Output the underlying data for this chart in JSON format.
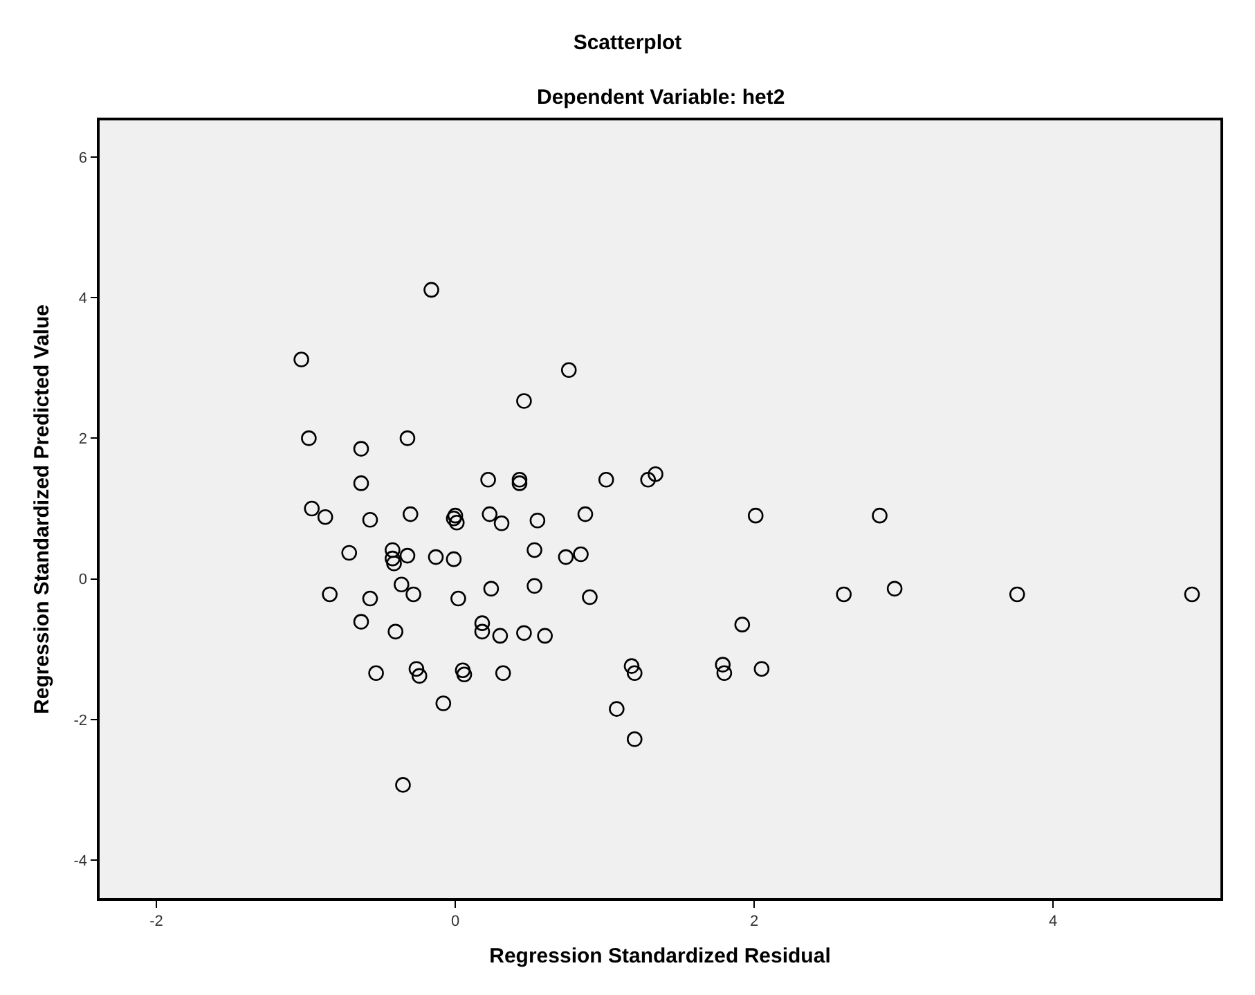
{
  "chart_data": {
    "type": "scatter",
    "title": "Scatterplot",
    "subtitle": "Dependent Variable: het2",
    "xlabel": "Regression Standardized Residual",
    "ylabel": "Regression Standardized Predicted Value",
    "x": [
      -0.16,
      -1.03,
      0.76,
      0.46,
      -0.98,
      -0.63,
      -0.32,
      -0.63,
      0.22,
      0.43,
      0.43,
      1.01,
      1.29,
      1.34,
      -0.96,
      -0.87,
      -0.57,
      -0.3,
      0,
      0.01,
      -0.01,
      0.23,
      0.31,
      0.55,
      0.87,
      2.01,
      2.84,
      -0.71,
      -0.42,
      -0.42,
      -0.41,
      -0.32,
      -0.13,
      -0.01,
      0.53,
      0.74,
      0.84,
      -0.84,
      -0.57,
      -0.36,
      -0.28,
      0.02,
      0.24,
      0.53,
      0.9,
      2.6,
      2.94,
      3.76,
      4.93,
      -0.63,
      -0.4,
      0.18,
      0.18,
      0.3,
      0.46,
      0.6,
      1.92,
      -0.53,
      -0.26,
      -0.24,
      0.05,
      0.06,
      0.32,
      1.18,
      1.2,
      1.79,
      1.8,
      2.05,
      -0.08,
      1.08,
      1.2,
      -0.35
    ],
    "values": [
      4.11,
      3.12,
      2.97,
      2.53,
      2,
      1.85,
      2,
      1.36,
      1.41,
      1.41,
      1.36,
      1.41,
      1.41,
      1.49,
      1,
      0.88,
      0.84,
      0.92,
      0.9,
      0.8,
      0.86,
      0.92,
      0.79,
      0.83,
      0.92,
      0.9,
      0.9,
      0.37,
      0.41,
      0.29,
      0.22,
      0.33,
      0.31,
      0.28,
      0.41,
      0.31,
      0.35,
      -0.22,
      -0.28,
      -0.08,
      -0.22,
      -0.28,
      -0.14,
      -0.1,
      -0.26,
      -0.22,
      -0.14,
      -0.22,
      -0.22,
      -0.61,
      -0.75,
      -0.63,
      -0.75,
      -0.81,
      -0.77,
      -0.81,
      -0.65,
      -1.34,
      -1.28,
      -1.38,
      -1.3,
      -1.36,
      -1.34,
      -1.24,
      -1.34,
      -1.22,
      -1.34,
      -1.28,
      -1.77,
      -1.85,
      -2.28,
      -2.93
    ],
    "color": "#000000",
    "marker": "circle",
    "grid": false,
    "xlim": [
      -2.38,
      5.12
    ],
    "ylim": [
      -4.54,
      6.52
    ],
    "xticks": [
      -2,
      0,
      2,
      4
    ],
    "yticks": [
      -4,
      -2,
      0,
      2,
      4,
      6
    ]
  }
}
